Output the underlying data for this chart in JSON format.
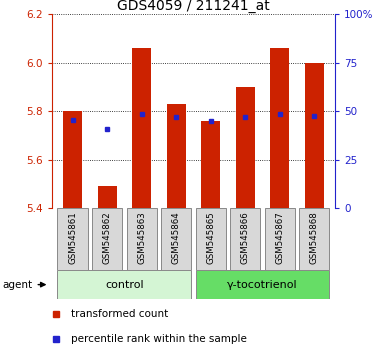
{
  "title": "GDS4059 / 211241_at",
  "samples": [
    "GSM545861",
    "GSM545862",
    "GSM545863",
    "GSM545864",
    "GSM545865",
    "GSM545866",
    "GSM545867",
    "GSM545868"
  ],
  "red_values": [
    5.8,
    5.49,
    6.06,
    5.83,
    5.76,
    5.9,
    6.06,
    6.0
  ],
  "blue_values": [
    5.765,
    5.725,
    5.79,
    5.775,
    5.76,
    5.775,
    5.79,
    5.78
  ],
  "ylim_left": [
    5.4,
    6.2
  ],
  "ylim_right": [
    0,
    100
  ],
  "yticks_left": [
    5.4,
    5.6,
    5.8,
    6.0,
    6.2
  ],
  "yticks_right": [
    0,
    25,
    50,
    75,
    100
  ],
  "ytick_labels_right": [
    "0",
    "25",
    "50",
    "75",
    "100%"
  ],
  "groups": [
    {
      "label": "control",
      "indices": [
        0,
        1,
        2,
        3
      ],
      "color": "#d4f5d4"
    },
    {
      "label": "γ-tocotrienol",
      "indices": [
        4,
        5,
        6,
        7
      ],
      "color": "#66dd66"
    }
  ],
  "bar_width": 0.55,
  "bar_bottom": 5.4,
  "red_color": "#cc2200",
  "blue_color": "#2222cc",
  "agent_label": "agent",
  "legend_items": [
    {
      "label": "transformed count",
      "color": "#cc2200"
    },
    {
      "label": "percentile rank within the sample",
      "color": "#2222cc"
    }
  ],
  "title_fontsize": 10,
  "tick_fontsize": 7.5,
  "label_fontsize": 8
}
